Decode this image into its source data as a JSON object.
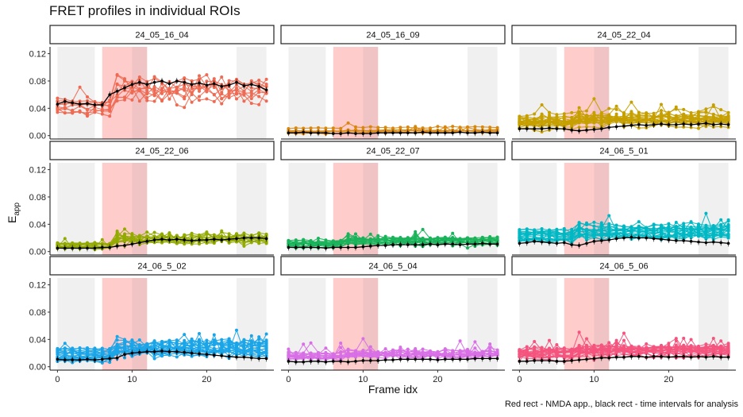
{
  "title": "FRET profiles in individual ROIs",
  "caption": "Red rect - NMDA app., black rect - time intervals for analysis",
  "chart_data": {
    "type": "line",
    "facet_layout": "3x3",
    "xlabel": "Frame idx",
    "ylabel_main": "E",
    "ylabel_sub": "app",
    "xlim": [
      -1,
      29
    ],
    "ylim": [
      -0.005,
      0.13
    ],
    "x_ticks": [
      0,
      10,
      20
    ],
    "y_ticks": [
      0.0,
      0.04,
      0.08,
      0.12
    ],
    "y_tick_labels": [
      "0.00",
      "0.04",
      "0.08",
      "0.12"
    ],
    "x_tick_labels": [
      "0",
      "10",
      "20"
    ],
    "shaded_intervals": {
      "analysis": [
        [
          0,
          5
        ],
        [
          24,
          28
        ]
      ],
      "nmda": [
        6,
        12
      ],
      "overlap": [
        10,
        12
      ],
      "analysis_color": "#f0f0f0",
      "nmda_color": "#ffcccc",
      "overlap_color": "#f0c4c4"
    },
    "mean_color": "#000000",
    "panels": [
      {
        "name": "24_05_16_04",
        "color": "#ee6a53",
        "n_rois": 9,
        "base": 0.045,
        "spread": 0.02,
        "after_shift": 0.025,
        "noise": 0.008,
        "mean": [
          0.046,
          0.05,
          0.048,
          0.046,
          0.047,
          0.045,
          0.045,
          0.06,
          0.065,
          0.07,
          0.075,
          0.078,
          0.075,
          0.078,
          0.08,
          0.076,
          0.08,
          0.078,
          0.075,
          0.077,
          0.074,
          0.076,
          0.072,
          0.074,
          0.078,
          0.073,
          0.075,
          0.072,
          0.067
        ]
      },
      {
        "name": "24_05_16_09",
        "color": "#d9860d",
        "n_rois": 6,
        "base": 0.006,
        "spread": 0.006,
        "after_shift": 0.001,
        "noise": 0.002,
        "mean": [
          0.004,
          0.004,
          0.005,
          0.004,
          0.004,
          0.004,
          0.003,
          0.003,
          0.004,
          0.003,
          0.003,
          0.003,
          0.004,
          0.004,
          0.004,
          0.004,
          0.004,
          0.004,
          0.005,
          0.004,
          0.004,
          0.004,
          0.004,
          0.005,
          0.004,
          0.004,
          0.005,
          0.004,
          0.004
        ]
      },
      {
        "name": "24_05_22_04",
        "color": "#c5a000",
        "n_rois": 22,
        "base": 0.02,
        "spread": 0.018,
        "after_shift": 0.004,
        "noise": 0.006,
        "mean": [
          0.01,
          0.01,
          0.01,
          0.01,
          0.011,
          0.01,
          0.01,
          0.008,
          0.007,
          0.008,
          0.009,
          0.01,
          0.012,
          0.013,
          0.014,
          0.015,
          0.016,
          0.015,
          0.016,
          0.017,
          0.016,
          0.016,
          0.017,
          0.016,
          0.017,
          0.018,
          0.016,
          0.017,
          0.016
        ]
      },
      {
        "name": "24_05_22_06",
        "color": "#93aa00",
        "n_rois": 14,
        "base": 0.01,
        "spread": 0.008,
        "after_shift": 0.01,
        "noise": 0.003,
        "mean": [
          0.005,
          0.005,
          0.005,
          0.005,
          0.005,
          0.005,
          0.006,
          0.006,
          0.008,
          0.009,
          0.011,
          0.013,
          0.015,
          0.017,
          0.018,
          0.017,
          0.018,
          0.017,
          0.016,
          0.017,
          0.017,
          0.018,
          0.017,
          0.018,
          0.019,
          0.02,
          0.02,
          0.02,
          0.019
        ]
      },
      {
        "name": "24_05_22_07",
        "color": "#19b35a",
        "n_rois": 18,
        "base": 0.012,
        "spread": 0.009,
        "after_shift": 0.004,
        "noise": 0.004,
        "mean": [
          0.006,
          0.006,
          0.006,
          0.006,
          0.006,
          0.005,
          0.006,
          0.006,
          0.006,
          0.006,
          0.007,
          0.008,
          0.009,
          0.009,
          0.01,
          0.01,
          0.01,
          0.01,
          0.01,
          0.011,
          0.01,
          0.011,
          0.011,
          0.01,
          0.011,
          0.011,
          0.012,
          0.011,
          0.011
        ]
      },
      {
        "name": "24_06_5_01",
        "color": "#00b8c4",
        "n_rois": 20,
        "base": 0.022,
        "spread": 0.016,
        "after_shift": 0.006,
        "noise": 0.006,
        "mean": [
          0.012,
          0.013,
          0.015,
          0.014,
          0.013,
          0.012,
          0.013,
          0.01,
          0.009,
          0.012,
          0.015,
          0.016,
          0.017,
          0.019,
          0.02,
          0.021,
          0.02,
          0.02,
          0.019,
          0.018,
          0.017,
          0.016,
          0.016,
          0.015,
          0.014,
          0.013,
          0.014,
          0.013,
          0.012
        ]
      },
      {
        "name": "24_06_5_02",
        "color": "#1aa5e8",
        "n_rois": 22,
        "base": 0.018,
        "spread": 0.015,
        "after_shift": 0.01,
        "noise": 0.006,
        "mean": [
          0.011,
          0.01,
          0.01,
          0.01,
          0.011,
          0.01,
          0.011,
          0.012,
          0.013,
          0.018,
          0.02,
          0.021,
          0.022,
          0.022,
          0.023,
          0.022,
          0.022,
          0.021,
          0.02,
          0.019,
          0.018,
          0.017,
          0.016,
          0.015,
          0.014,
          0.014,
          0.013,
          0.012,
          0.012
        ]
      },
      {
        "name": "24_06_5_04",
        "color": "#d86fe6",
        "n_rois": 16,
        "base": 0.016,
        "spread": 0.01,
        "after_shift": 0.003,
        "noise": 0.005,
        "mean": [
          0.008,
          0.007,
          0.007,
          0.008,
          0.008,
          0.007,
          0.008,
          0.008,
          0.007,
          0.008,
          0.009,
          0.009,
          0.009,
          0.01,
          0.01,
          0.011,
          0.011,
          0.011,
          0.011,
          0.011,
          0.01,
          0.011,
          0.011,
          0.011,
          0.011,
          0.012,
          0.012,
          0.012,
          0.012
        ]
      },
      {
        "name": "24_06_5_06",
        "color": "#f4547e",
        "n_rois": 22,
        "base": 0.02,
        "spread": 0.014,
        "after_shift": 0.004,
        "noise": 0.006,
        "mean": [
          0.008,
          0.008,
          0.009,
          0.009,
          0.009,
          0.008,
          0.008,
          0.009,
          0.01,
          0.011,
          0.012,
          0.013,
          0.013,
          0.014,
          0.014,
          0.015,
          0.015,
          0.014,
          0.015,
          0.015,
          0.014,
          0.015,
          0.015,
          0.014,
          0.015,
          0.014,
          0.015,
          0.014,
          0.014
        ]
      }
    ]
  }
}
